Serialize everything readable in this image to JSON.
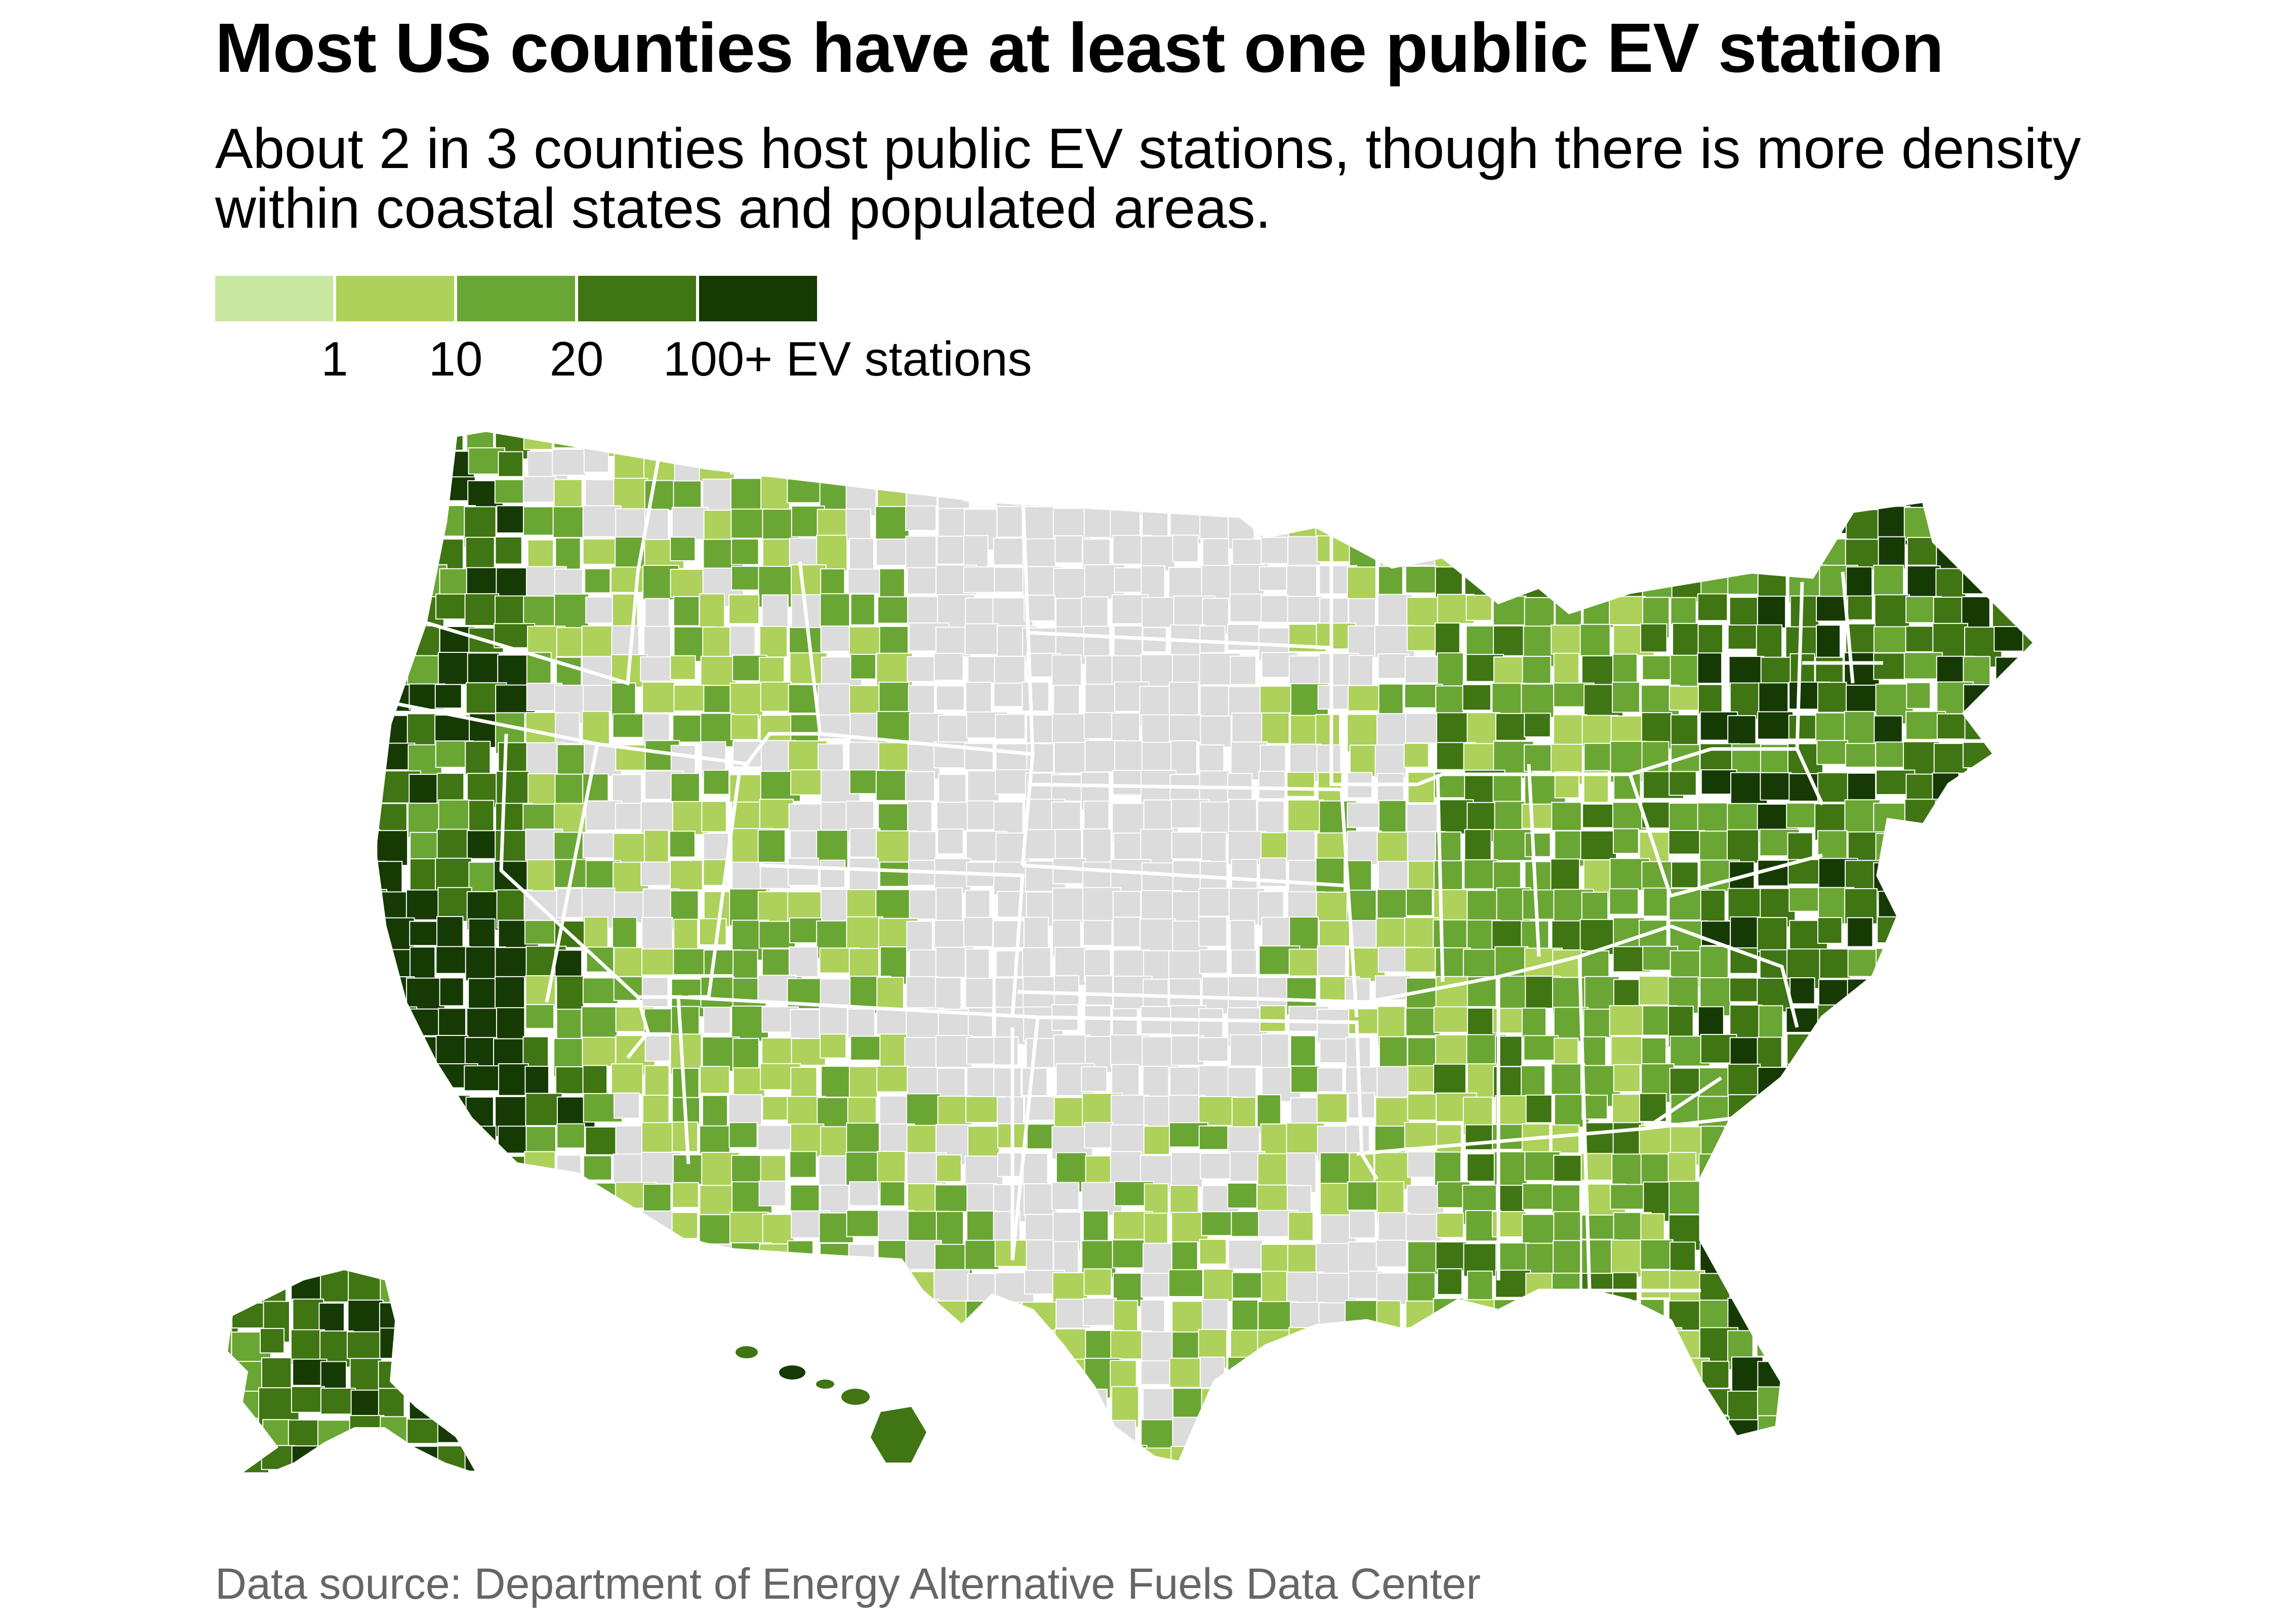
{
  "title": "Most US counties have at least one public EV station",
  "subtitle": "About 2 in 3 counties host public EV stations, though there is more density within coastal states and populated areas.",
  "legend": {
    "ticks": [
      "1",
      "10",
      "20",
      "100+ EV stations"
    ],
    "colors": [
      "#c9e8a2",
      "#add15a",
      "#6aa634",
      "#3f7512",
      "#163a03"
    ]
  },
  "map": {
    "no_data_color": "#dcdcdc",
    "border_color": "#ffffff"
  },
  "source": "Data source: Department of Energy Alternative Fuels Data Center"
}
